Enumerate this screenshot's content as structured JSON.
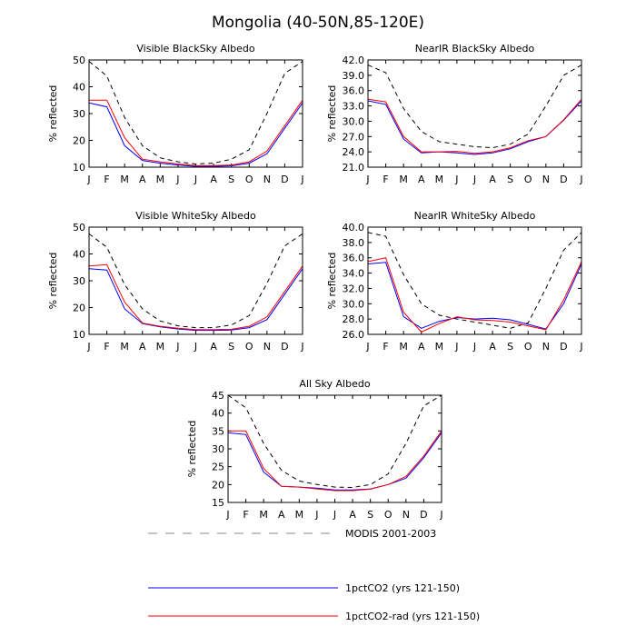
{
  "title": "Mongolia (40-50N,85-120E)",
  "colors": {
    "modis": "#000000",
    "ctl": "#0000ff",
    "rad": "#ff0000"
  },
  "legend": [
    {
      "key": "modis",
      "label": "MODIS 2001-2003",
      "style": "dashed",
      "color": "#000000"
    },
    {
      "key": "ctl",
      "label": "1pctCO2 (yrs 121-150)",
      "style": "solid",
      "color": "#0000ff"
    },
    {
      "key": "rad",
      "label": "1pctCO2-rad (yrs 121-150)",
      "style": "solid",
      "color": "#ff0000"
    }
  ],
  "chart_data": [
    {
      "type": "line",
      "title": "Visible BlackSky Albedo",
      "ylabel": "% reflected",
      "categories": [
        "J",
        "F",
        "M",
        "A",
        "M",
        "J",
        "J",
        "A",
        "S",
        "O",
        "N",
        "D",
        "J"
      ],
      "ylim": [
        10,
        50
      ],
      "yticks": [
        10,
        20,
        30,
        40,
        50
      ],
      "ytick_labels": [
        "10",
        "20",
        "30",
        "40",
        "50"
      ],
      "series": [
        {
          "key": "modis",
          "values": [
            49.5,
            44.0,
            28.5,
            18.0,
            13.5,
            12.0,
            11.2,
            11.5,
            13.0,
            16.5,
            30.0,
            45.0,
            49.5
          ]
        },
        {
          "key": "ctl",
          "values": [
            34.0,
            32.5,
            18.0,
            12.5,
            11.5,
            10.8,
            10.3,
            10.3,
            10.5,
            11.5,
            15.0,
            24.5,
            34.0
          ]
        },
        {
          "key": "rad",
          "values": [
            35.0,
            35.0,
            21.0,
            13.0,
            12.0,
            11.2,
            10.6,
            10.6,
            10.8,
            12.0,
            16.0,
            25.5,
            35.0
          ]
        }
      ]
    },
    {
      "type": "line",
      "title": "NearIR BlackSky Albedo",
      "ylabel": "% reflected",
      "categories": [
        "J",
        "F",
        "M",
        "A",
        "M",
        "J",
        "J",
        "A",
        "S",
        "O",
        "N",
        "D",
        "J"
      ],
      "ylim": [
        21,
        42
      ],
      "yticks": [
        21,
        24,
        27,
        30,
        33,
        36,
        39,
        42
      ],
      "ytick_labels": [
        "21.0",
        "24.0",
        "27.0",
        "30.0",
        "33.0",
        "36.0",
        "39.0",
        "42.0"
      ],
      "series": [
        {
          "key": "modis",
          "values": [
            41.0,
            39.5,
            32.5,
            28.0,
            26.0,
            25.5,
            25.0,
            24.8,
            25.5,
            27.5,
            33.0,
            39.0,
            41.0
          ]
        },
        {
          "key": "ctl",
          "values": [
            34.0,
            33.3,
            26.5,
            23.8,
            24.0,
            23.8,
            23.5,
            23.8,
            24.6,
            26.0,
            27.0,
            30.2,
            34.0
          ]
        },
        {
          "key": "rad",
          "values": [
            34.3,
            33.8,
            27.0,
            24.0,
            24.0,
            24.1,
            23.7,
            24.0,
            24.8,
            26.2,
            27.0,
            30.3,
            34.3
          ]
        }
      ]
    },
    {
      "type": "line",
      "title": "Visible WhiteSky Albedo",
      "ylabel": "% reflected",
      "categories": [
        "J",
        "F",
        "M",
        "A",
        "M",
        "J",
        "J",
        "A",
        "S",
        "O",
        "N",
        "D",
        "J"
      ],
      "ylim": [
        10,
        50
      ],
      "yticks": [
        10,
        20,
        30,
        40,
        50
      ],
      "ytick_labels": [
        "10",
        "20",
        "30",
        "40",
        "50"
      ],
      "series": [
        {
          "key": "modis",
          "values": [
            47.5,
            42.5,
            28.5,
            19.5,
            15.0,
            13.2,
            12.5,
            12.5,
            13.5,
            17.0,
            29.0,
            43.0,
            47.5
          ]
        },
        {
          "key": "ctl",
          "values": [
            34.5,
            34.0,
            19.5,
            14.0,
            12.8,
            12.0,
            11.5,
            11.5,
            11.6,
            12.5,
            15.5,
            25.0,
            34.5
          ]
        },
        {
          "key": "rad",
          "values": [
            35.5,
            36.0,
            22.0,
            14.2,
            13.0,
            12.3,
            11.8,
            11.8,
            11.9,
            13.0,
            16.5,
            26.0,
            35.5
          ]
        }
      ]
    },
    {
      "type": "line",
      "title": "NearIR WhiteSky Albedo",
      "ylabel": "% reflected",
      "categories": [
        "J",
        "F",
        "M",
        "A",
        "M",
        "J",
        "J",
        "A",
        "S",
        "O",
        "N",
        "D",
        "J"
      ],
      "ylim": [
        26,
        40
      ],
      "yticks": [
        26,
        28,
        30,
        32,
        34,
        36,
        38,
        40
      ],
      "ytick_labels": [
        "26.0",
        "28.0",
        "30.0",
        "32.0",
        "34.0",
        "36.0",
        "38.0",
        "40.0"
      ],
      "series": [
        {
          "key": "modis",
          "values": [
            39.3,
            38.8,
            33.8,
            30.0,
            28.5,
            28.0,
            27.6,
            27.2,
            26.8,
            27.5,
            32.0,
            37.0,
            39.3
          ]
        },
        {
          "key": "ctl",
          "values": [
            35.2,
            35.4,
            28.3,
            26.8,
            27.7,
            28.2,
            28.0,
            28.1,
            27.9,
            27.3,
            26.7,
            30.0,
            35.2
          ]
        },
        {
          "key": "rad",
          "values": [
            35.5,
            36.0,
            28.9,
            26.3,
            27.4,
            28.3,
            27.9,
            27.8,
            27.6,
            27.1,
            26.6,
            30.5,
            35.5
          ]
        }
      ]
    },
    {
      "type": "line",
      "title": "All Sky Albedo",
      "ylabel": "% reflected",
      "categories": [
        "J",
        "F",
        "M",
        "A",
        "M",
        "J",
        "J",
        "A",
        "S",
        "O",
        "N",
        "D",
        "J"
      ],
      "ylim": [
        15,
        45
      ],
      "yticks": [
        15,
        20,
        25,
        30,
        35,
        40,
        45
      ],
      "ytick_labels": [
        "15",
        "20",
        "25",
        "30",
        "35",
        "40",
        "45"
      ],
      "series": [
        {
          "key": "modis",
          "values": [
            45.0,
            41.5,
            31.5,
            24.0,
            21.0,
            20.0,
            19.3,
            19.2,
            20.0,
            23.0,
            31.5,
            42.0,
            45.0
          ]
        },
        {
          "key": "ctl",
          "values": [
            34.5,
            34.0,
            23.5,
            19.5,
            19.3,
            19.0,
            18.5,
            18.5,
            18.8,
            20.0,
            21.8,
            27.5,
            34.5
          ]
        },
        {
          "key": "rad",
          "values": [
            35.0,
            35.0,
            24.5,
            19.5,
            19.3,
            18.8,
            18.3,
            18.3,
            18.7,
            20.0,
            22.3,
            28.0,
            35.0
          ]
        }
      ]
    }
  ]
}
